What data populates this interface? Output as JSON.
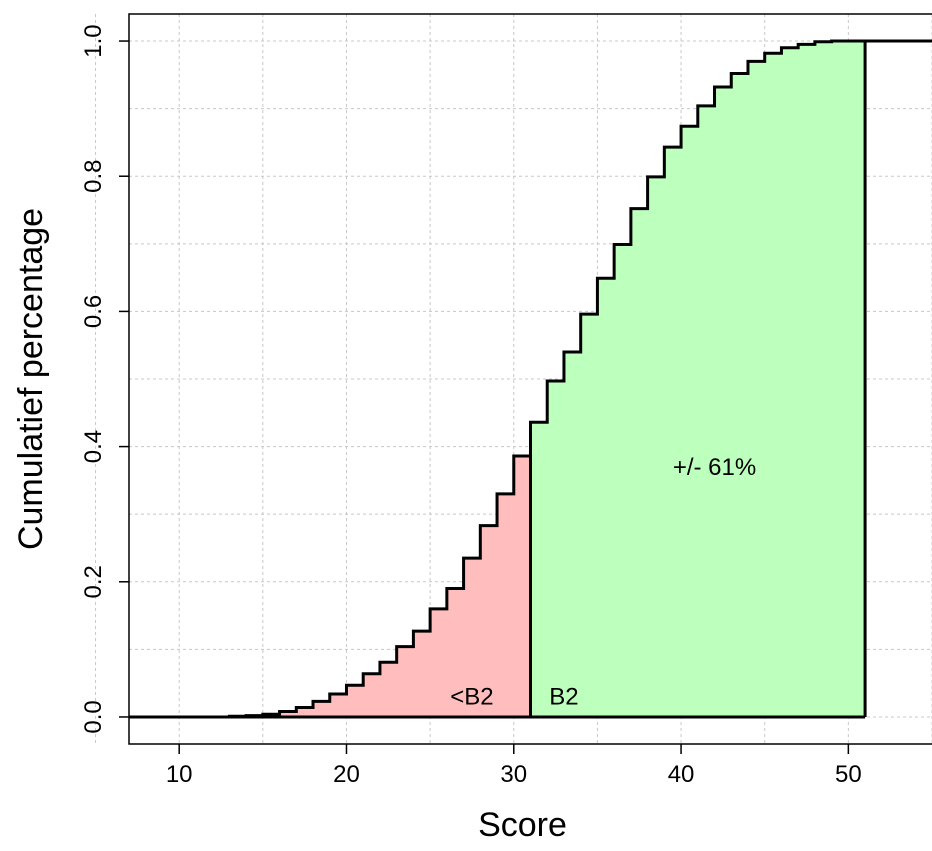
{
  "chart_data": {
    "type": "step",
    "title": "",
    "xlabel": "Score",
    "ylabel": "Cumulatief percentage",
    "xlim": [
      7,
      55
    ],
    "ylim": [
      -0.04,
      1.04
    ],
    "xticks": [
      10,
      20,
      30,
      40,
      50
    ],
    "yticks": [
      0.0,
      0.2,
      0.4,
      0.6,
      0.8,
      1.0
    ],
    "xtick_labels": [
      "10",
      "20",
      "30",
      "40",
      "50"
    ],
    "ytick_labels": [
      "0.0",
      "0.2",
      "0.4",
      "0.6",
      "0.8",
      "1.0"
    ],
    "grid": true,
    "cutoff": 31,
    "upper_bound": 51,
    "colors": {
      "below": "#ffbdbd",
      "above": "#bdffbd",
      "line": "#000000",
      "grid": "#c8c8c8"
    },
    "x": [
      13,
      14,
      15,
      16,
      17,
      18,
      19,
      20,
      21,
      22,
      23,
      24,
      25,
      26,
      27,
      28,
      29,
      30,
      31,
      32,
      33,
      34,
      35,
      36,
      37,
      38,
      39,
      40,
      41,
      42,
      43,
      44,
      45,
      46,
      47,
      48,
      49,
      50,
      51
    ],
    "y": [
      0.001,
      0.002,
      0.004,
      0.008,
      0.014,
      0.023,
      0.034,
      0.047,
      0.064,
      0.081,
      0.104,
      0.127,
      0.16,
      0.19,
      0.235,
      0.283,
      0.33,
      0.386,
      0.436,
      0.497,
      0.54,
      0.596,
      0.649,
      0.699,
      0.752,
      0.799,
      0.843,
      0.874,
      0.904,
      0.932,
      0.952,
      0.97,
      0.982,
      0.99,
      0.995,
      0.999,
      1.0,
      1.0,
      1.0
    ],
    "annotations": [
      {
        "text": "<B2",
        "x": 27.5,
        "y": 0.03
      },
      {
        "text": "B2",
        "x": 33,
        "y": 0.03
      },
      {
        "text": "+/- 61%",
        "x": 42,
        "y": 0.37
      }
    ]
  }
}
